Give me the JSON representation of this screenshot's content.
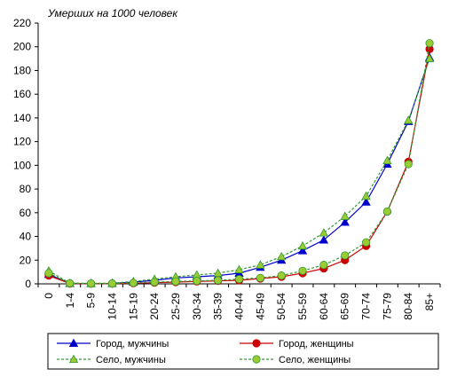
{
  "chart_data": {
    "type": "line",
    "title": "Умерших на 1000 человек",
    "xlabel": "",
    "ylabel": "",
    "categories": [
      "0",
      "1-4",
      "5-9",
      "10-14",
      "15-19",
      "20-24",
      "25-29",
      "30-34",
      "35-39",
      "40-44",
      "45-49",
      "50-54",
      "55-59",
      "60-64",
      "65-69",
      "70-74",
      "75-79",
      "80-84",
      "85+"
    ],
    "ylim": [
      0,
      220
    ],
    "yticks": [
      0,
      20,
      40,
      60,
      80,
      100,
      120,
      140,
      160,
      180,
      200,
      220
    ],
    "grid": false,
    "legend_placement": "bottom",
    "series": [
      {
        "name": "Город, мужчины",
        "color": "#0000cc",
        "marker": "triangle",
        "dashed": false,
        "values": [
          8,
          0.4,
          0.3,
          0.4,
          1.5,
          3,
          5,
          6,
          7,
          9,
          14,
          20,
          28,
          37,
          52,
          69,
          101,
          137,
          191
        ]
      },
      {
        "name": "Город, женщины",
        "color": "#cc0000",
        "marker": "circle",
        "dashed": false,
        "values": [
          7,
          0.3,
          0.2,
          0.2,
          0.5,
          1,
          1.5,
          2,
          2.5,
          3,
          4.5,
          6,
          9,
          13,
          20,
          32,
          61,
          103,
          198
        ]
      },
      {
        "name": "Село, мужчины",
        "color": "#339933",
        "marker": "triangle",
        "dashed": true,
        "values": [
          11,
          0.6,
          0.4,
          0.6,
          2,
          4,
          6,
          7.5,
          9,
          12,
          16,
          23,
          32,
          43,
          57,
          74,
          104,
          138,
          190
        ]
      },
      {
        "name": "Село, женщины",
        "color": "#339933",
        "marker": "circle",
        "dashed": true,
        "values": [
          9,
          0.5,
          0.3,
          0.3,
          0.8,
          1.5,
          2,
          2.5,
          3,
          4,
          5,
          7,
          11,
          16,
          24,
          35,
          61,
          101,
          203
        ]
      }
    ]
  }
}
